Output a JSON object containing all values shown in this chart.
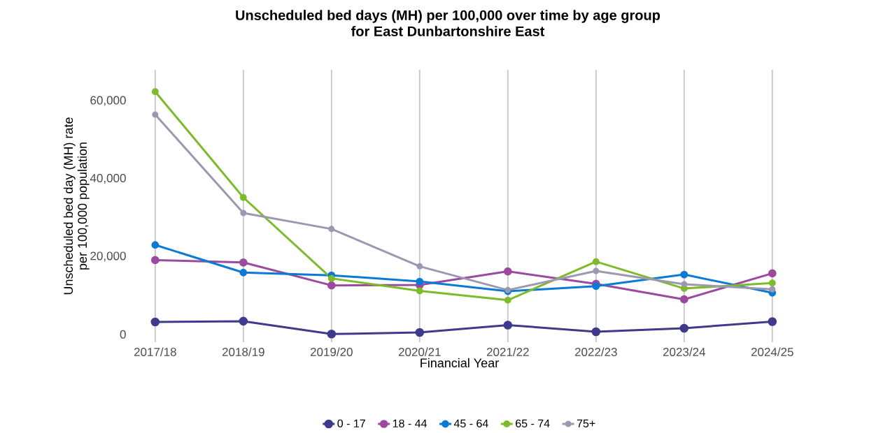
{
  "chart_data": {
    "type": "line",
    "title": "Unscheduled bed days (MH) per 100,000 over time by age group\nfor East Dunbartonshire East",
    "xlabel": "Financial Year",
    "ylabel": "Unscheduled bed day (MH) rate\nper 100,000 population",
    "categories": [
      "2017/18",
      "2018/19",
      "2019/20",
      "2020/21",
      "2021/22",
      "2022/23",
      "2023/24",
      "2024/25"
    ],
    "series": [
      {
        "name": "0 - 17",
        "color": "#3f3a8c",
        "values": [
          3200,
          3400,
          100,
          500,
          2400,
          700,
          1600,
          3300
        ]
      },
      {
        "name": "18 - 44",
        "color": "#9b4a9e",
        "values": [
          19100,
          18500,
          12600,
          12700,
          16200,
          13000,
          9000,
          15700
        ]
      },
      {
        "name": "45 - 64",
        "color": "#0a7ad6",
        "values": [
          23000,
          15900,
          15200,
          13600,
          11100,
          12400,
          15400,
          10700
        ]
      },
      {
        "name": "65 - 74",
        "color": "#7dbb2b",
        "values": [
          62400,
          35200,
          14400,
          11200,
          8800,
          18700,
          11800,
          13200
        ]
      },
      {
        "name": "75+",
        "color": "#9b98b0",
        "values": [
          56500,
          31200,
          27100,
          17500,
          11400,
          16300,
          12900,
          11600
        ]
      }
    ],
    "ylim": [
      -2000,
      68000
    ],
    "yticks": [
      0,
      {
        "value": 20000,
        "label": "20,000"
      },
      {
        "value": 40000,
        "label": "40,000"
      },
      {
        "value": 60000,
        "label": "60,000"
      }
    ],
    "grid": "x",
    "legend": "bottom",
    "marker": "circle",
    "line_style": "solid"
  }
}
